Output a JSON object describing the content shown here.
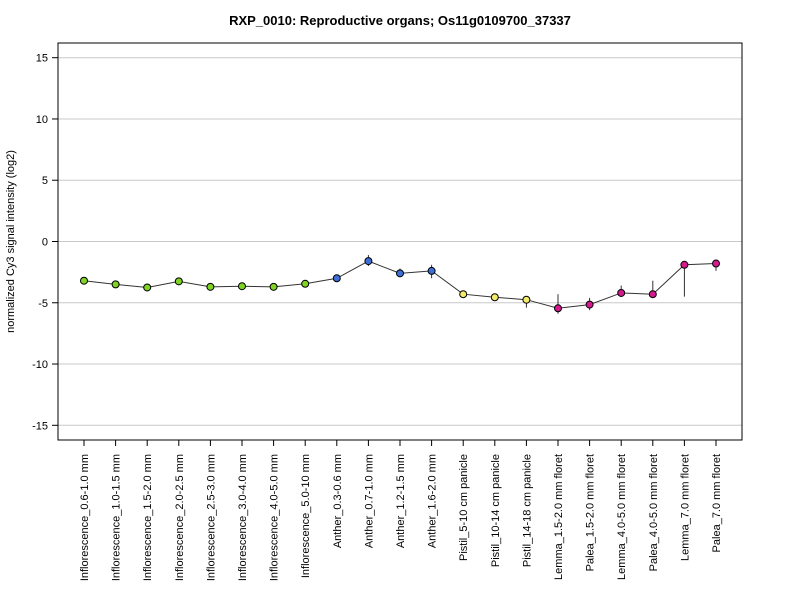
{
  "chart_data": {
    "type": "line",
    "title": "RXP_0010: Reproductive organs; Os11g0109700_37337",
    "xlabel": "",
    "ylabel": "normalized Cy3 signal intensity (log2)",
    "ylim": [
      -16.2,
      16.2
    ],
    "yticks": [
      -15,
      -10,
      -5,
      0,
      5,
      10,
      15
    ],
    "grid": "horizontal",
    "categories": [
      "Inflorescence_0.6-1.0 mm",
      "Inflorescence_1.0-1.5 mm",
      "Inflorescence_1.5-2.0 mm",
      "Inflorescence_2.0-2.5 mm",
      "Inflorescence_2.5-3.0 mm",
      "Inflorescence_3.0-4.0 mm",
      "Inflorescence_4.0-5.0 mm",
      "Inflorescence_5.0-10 mm",
      "Anther_0.3-0.6 mm",
      "Anther_0.7-1.0 mm",
      "Anther_1.2-1.5 mm",
      "Anther_1.6-2.0 mm",
      "Pistil_5-10 cm panicle",
      "Pistil_10-14 cm panicle",
      "Pistil_14-18 cm panicle",
      "Lemma_1.5-2.0 mm floret",
      "Palea_1.5-2.0 mm floret",
      "Lemma_4.0-5.0 mm floret",
      "Palea_4.0-5.0 mm floret",
      "Lemma_7.0 mm floret",
      "Palea_7.0 mm floret"
    ],
    "values": [
      -3.2,
      -3.5,
      -3.75,
      -3.25,
      -3.7,
      -3.65,
      -3.7,
      -3.45,
      -3.0,
      -1.6,
      -2.6,
      -2.4,
      -4.3,
      -4.55,
      -4.75,
      -5.45,
      -5.15,
      -4.2,
      -4.3,
      -1.9,
      -1.8
    ],
    "error_low": [
      -3.4,
      -3.6,
      -3.9,
      -3.4,
      -3.8,
      -3.8,
      -3.8,
      -3.6,
      -3.1,
      -2.0,
      -2.9,
      -3.0,
      -4.6,
      -4.8,
      -5.4,
      -5.9,
      -5.6,
      -4.5,
      -4.6,
      -4.5,
      -2.4
    ],
    "error_high": [
      -3.0,
      -3.3,
      -3.6,
      -3.1,
      -3.6,
      -3.5,
      -3.6,
      -3.3,
      -2.9,
      -1.1,
      -2.2,
      -1.9,
      -4.1,
      -4.3,
      -4.5,
      -4.3,
      -4.6,
      -3.6,
      -3.2,
      -1.7,
      -1.6
    ],
    "point_colors": [
      "#7fd321",
      "#7fd321",
      "#7fd321",
      "#7fd321",
      "#7fd321",
      "#7fd321",
      "#7fd321",
      "#7fd321",
      "#3d6fd8",
      "#3d6fd8",
      "#3d6fd8",
      "#3d6fd8",
      "#f2ea6b",
      "#f2ea6b",
      "#f2ea6b",
      "#d51a8f",
      "#d51a8f",
      "#d51a8f",
      "#d51a8f",
      "#d51a8f",
      "#d51a8f"
    ],
    "line_color": "#333333",
    "grid_color": "#c8c8c8"
  }
}
